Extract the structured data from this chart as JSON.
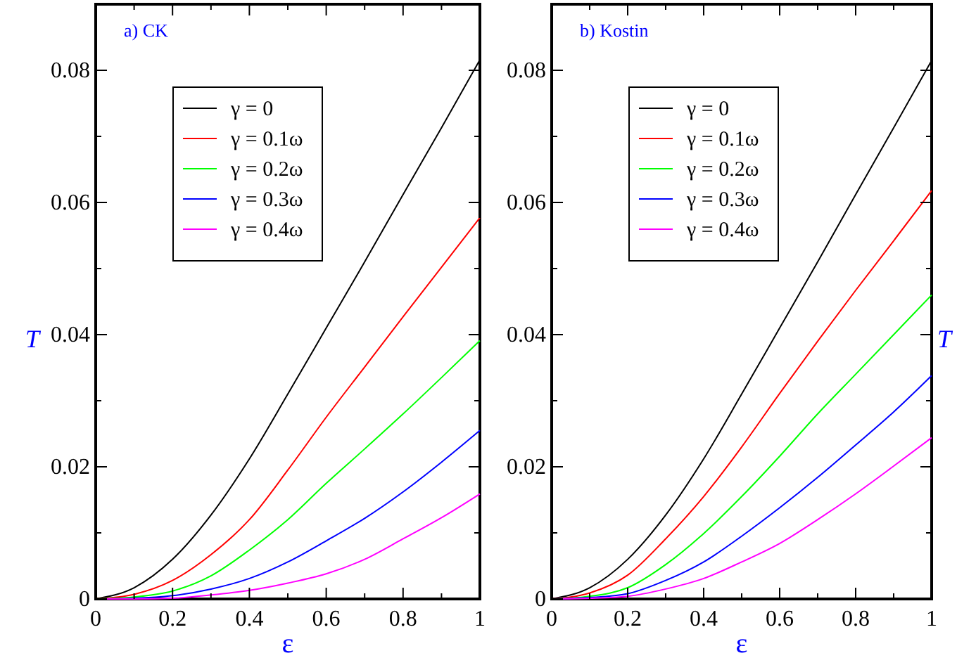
{
  "chart_data": [
    {
      "type": "line",
      "title": "a) CK",
      "xlabel": "ε",
      "ylabel": "T",
      "xlim": [
        0,
        1
      ],
      "ylim": [
        0,
        0.09
      ],
      "xticks": [
        0,
        {
          "value": 0.1,
          "label": null
        },
        0.2,
        {
          "value": 0.3,
          "label": null
        },
        0.4,
        {
          "value": 0.5,
          "label": null
        },
        0.6,
        {
          "value": 0.7,
          "label": null
        },
        0.8,
        {
          "value": 0.9,
          "label": null
        },
        1
      ],
      "yticks": [
        0,
        {
          "value": 0.01,
          "label": null
        },
        0.02,
        {
          "value": 0.03,
          "label": null
        },
        0.04,
        {
          "value": 0.05,
          "label": null
        },
        0.06,
        {
          "value": 0.07,
          "label": null
        },
        0.08
      ],
      "x": [
        0,
        0.1,
        0.2,
        0.3,
        0.4,
        0.5,
        0.6,
        0.7,
        0.8,
        0.9,
        1
      ],
      "legend": "top left",
      "grid": false,
      "marker": "none",
      "line_style": "solid",
      "series": [
        {
          "name": "γ = 0",
          "color": "#000000",
          "values": [
            0,
            0.0017,
            0.006,
            0.0127,
            0.0212,
            0.031,
            0.041,
            0.051,
            0.0612,
            0.0713,
            0.0816
          ]
        },
        {
          "name": "γ = 0.1ω",
          "color": "#ff0000",
          "values": [
            0,
            0.0007,
            0.0028,
            0.0067,
            0.012,
            0.0195,
            0.0275,
            0.0351,
            0.0427,
            0.0502,
            0.0577
          ]
        },
        {
          "name": "γ = 0.2ω",
          "color": "#00ff00",
          "values": [
            0,
            0.0003,
            0.0012,
            0.0035,
            0.0074,
            0.012,
            0.0175,
            0.0227,
            0.028,
            0.0335,
            0.0391
          ]
        },
        {
          "name": "γ = 0.3ω",
          "color": "#0000ff",
          "values": [
            0,
            0.0001,
            0.0005,
            0.0015,
            0.0031,
            0.0056,
            0.0088,
            0.0122,
            0.0162,
            0.0207,
            0.0255
          ]
        },
        {
          "name": "γ = 0.4ω",
          "color": "#ff00ff",
          "values": [
            0,
            0,
            0.0001,
            0.0006,
            0.0013,
            0.0024,
            0.0038,
            0.006,
            0.0091,
            0.0123,
            0.0159
          ]
        }
      ]
    },
    {
      "type": "line",
      "title": "b) Kostin",
      "xlabel": "ε",
      "ylabel": "T",
      "xlim": [
        0,
        1
      ],
      "ylim": [
        0,
        0.09
      ],
      "xticks": [
        0,
        {
          "value": 0.1,
          "label": null
        },
        0.2,
        {
          "value": 0.3,
          "label": null
        },
        0.4,
        {
          "value": 0.5,
          "label": null
        },
        0.6,
        {
          "value": 0.7,
          "label": null
        },
        0.8,
        {
          "value": 0.9,
          "label": null
        },
        1
      ],
      "yticks": [
        0,
        {
          "value": 0.01,
          "label": null
        },
        0.02,
        {
          "value": 0.03,
          "label": null
        },
        0.04,
        {
          "value": 0.05,
          "label": null
        },
        0.06,
        {
          "value": 0.07,
          "label": null
        },
        0.08
      ],
      "x": [
        0,
        0.1,
        0.2,
        0.3,
        0.4,
        0.5,
        0.6,
        0.7,
        0.8,
        0.9,
        1
      ],
      "legend": "top left",
      "grid": false,
      "marker": "none",
      "line_style": "solid",
      "series": [
        {
          "name": "γ = 0",
          "color": "#000000",
          "values": [
            0,
            0.0017,
            0.006,
            0.0127,
            0.0212,
            0.031,
            0.041,
            0.051,
            0.0612,
            0.0713,
            0.0815
          ]
        },
        {
          "name": "γ = 0.1ω",
          "color": "#ff0000",
          "values": [
            0,
            0.0009,
            0.0036,
            0.0091,
            0.0155,
            0.023,
            0.0311,
            0.039,
            0.0467,
            0.0542,
            0.0618
          ]
        },
        {
          "name": "γ = 0.2ω",
          "color": "#00ff00",
          "values": [
            0,
            0.0004,
            0.0017,
            0.0052,
            0.0099,
            0.0155,
            0.0216,
            0.028,
            0.034,
            0.04,
            0.046
          ]
        },
        {
          "name": "γ = 0.3ω",
          "color": "#0000ff",
          "values": [
            0,
            0.0002,
            0.0008,
            0.0028,
            0.0056,
            0.0095,
            0.0138,
            0.0184,
            0.0233,
            0.0283,
            0.0338
          ]
        },
        {
          "name": "γ = 0.4ω",
          "color": "#ff00ff",
          "values": [
            0,
            0.0001,
            0.0004,
            0.0015,
            0.0031,
            0.0056,
            0.0084,
            0.012,
            0.0159,
            0.0201,
            0.0244
          ]
        }
      ]
    }
  ]
}
